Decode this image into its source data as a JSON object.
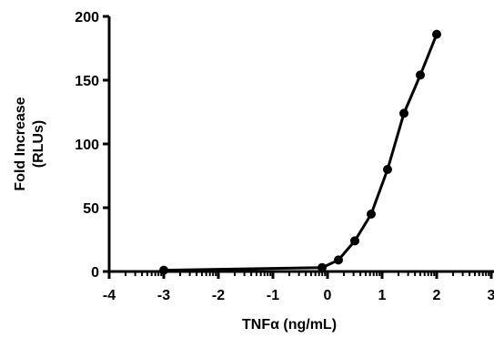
{
  "chart_data": {
    "type": "line",
    "title": "",
    "xlabel": "TNFα (ng/mL)",
    "ylabel_lines": [
      "Fold Increase",
      "(RLUs)"
    ],
    "xlim": [
      -4,
      3
    ],
    "ylim": [
      0,
      200
    ],
    "x_ticks": [
      -4,
      -3,
      -2,
      -1,
      0,
      1,
      2,
      3
    ],
    "y_ticks": [
      0,
      50,
      100,
      150,
      200
    ],
    "grid": false,
    "legend": "none",
    "series": [
      {
        "x": [
          -3,
          -0.1,
          0.2,
          0.5,
          0.8,
          1.1,
          1.4,
          1.7,
          2.0
        ],
        "y": [
          1,
          3,
          9,
          24,
          45,
          80,
          124,
          154,
          186
        ]
      }
    ]
  },
  "colors": {
    "line": "#000000",
    "marker": "#000000",
    "axis": "#000000"
  }
}
